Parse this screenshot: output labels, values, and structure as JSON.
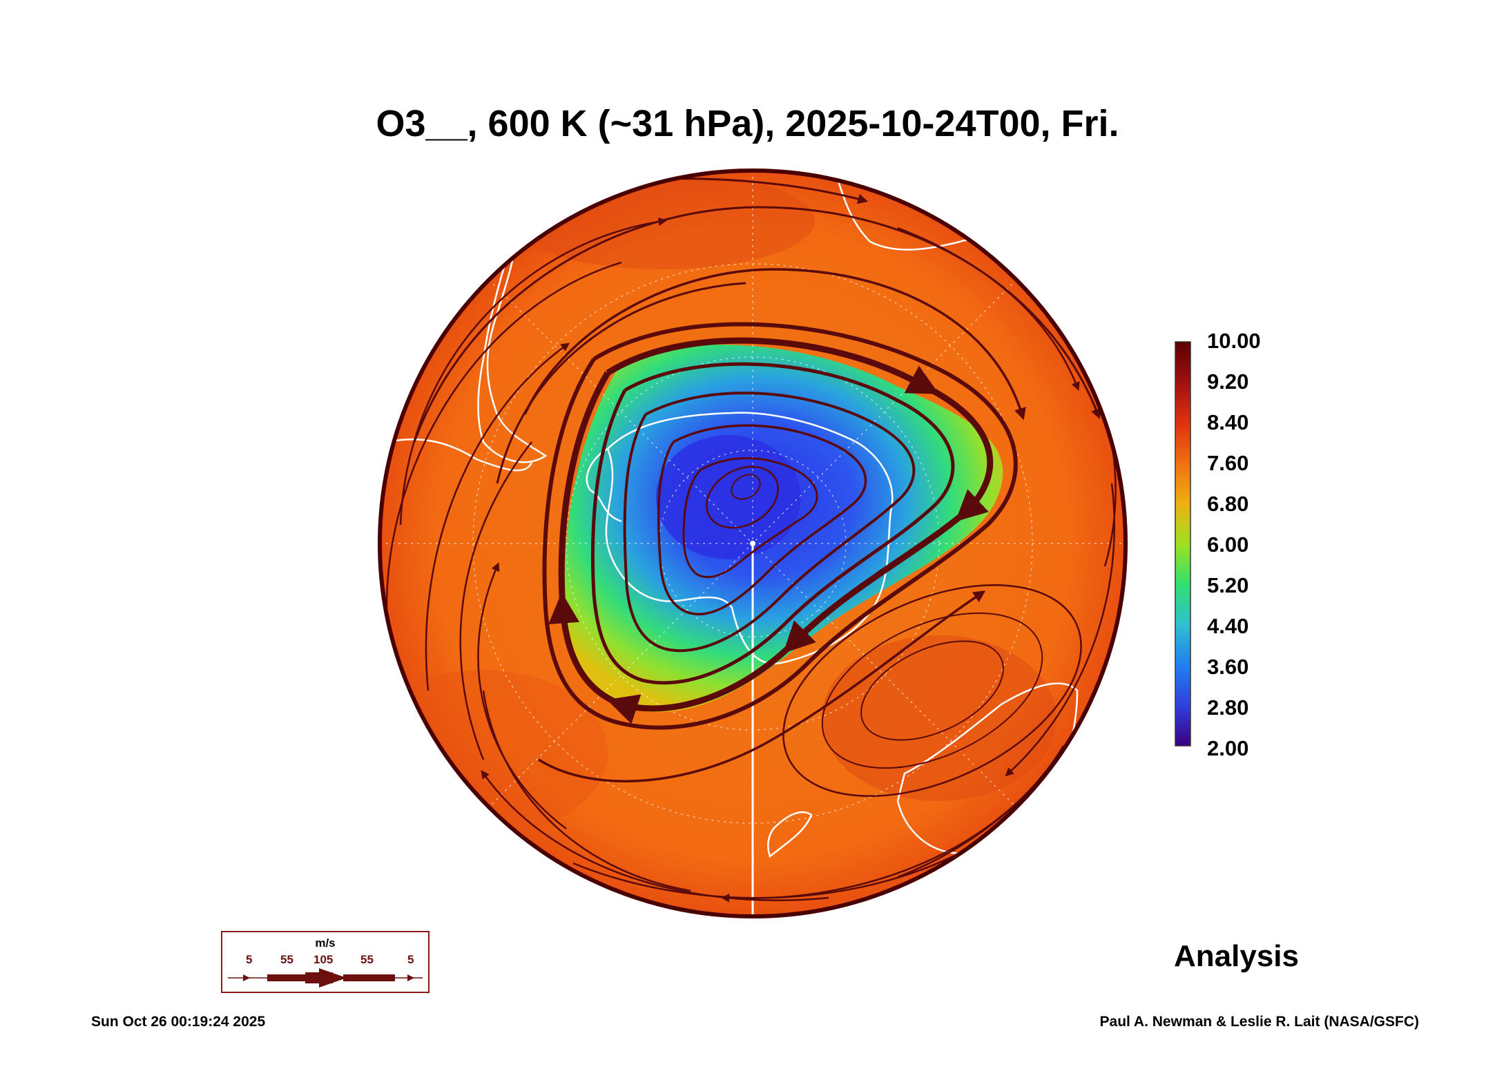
{
  "title": "O3__, 600 K (~31 hPa), 2025-10-24T00, Fri.",
  "colorbar": {
    "ticks": [
      "10.00",
      "9.20",
      "8.40",
      "7.60",
      "6.80",
      "6.00",
      "5.20",
      "4.40",
      "3.60",
      "2.80",
      "2.00"
    ],
    "colors": [
      "#5a0000",
      "#a01010",
      "#e03010",
      "#f07010",
      "#f0b010",
      "#a0e020",
      "#30e070",
      "#30c0d0",
      "#2080f0",
      "#3040e0",
      "#3a0080"
    ]
  },
  "wind_legend": {
    "unit": "m/s",
    "values": [
      "5",
      "55",
      "105",
      "55",
      "5"
    ]
  },
  "label_analysis": "Analysis",
  "timestamp": "Sun Oct 26 00:19:24 2025",
  "credit": "Paul A. Newman & Leslie R. Lait (NASA/GSFC)"
}
